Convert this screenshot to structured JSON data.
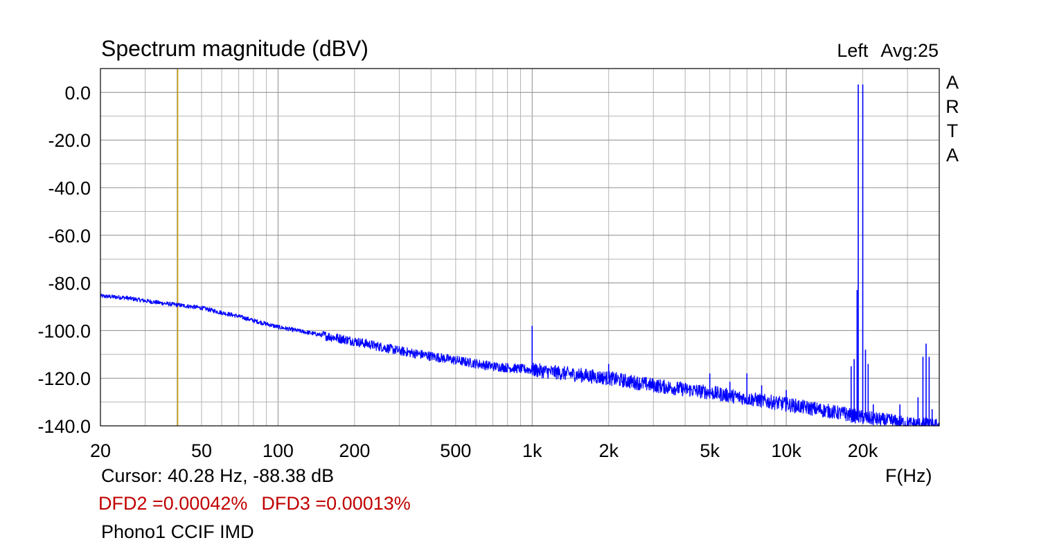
{
  "chart_data": {
    "type": "line",
    "title": "Spectrum magnitude (dBV)",
    "channel": "Left",
    "averaging": "Avg:25",
    "watermark": [
      "A",
      "R",
      "T",
      "A"
    ],
    "xlabel": "F(Hz)",
    "ylabel": "",
    "x_scale": "log",
    "xlim": [
      20,
      40000
    ],
    "ylim": [
      -140,
      10
    ],
    "x_ticks": [
      {
        "value": 20,
        "label": "20"
      },
      {
        "value": 50,
        "label": "50"
      },
      {
        "value": 100,
        "label": "100"
      },
      {
        "value": 200,
        "label": "200"
      },
      {
        "value": 500,
        "label": "500"
      },
      {
        "value": 1000,
        "label": "1k"
      },
      {
        "value": 2000,
        "label": "2k"
      },
      {
        "value": 5000,
        "label": "5k"
      },
      {
        "value": 10000,
        "label": "10k"
      },
      {
        "value": 20000,
        "label": "20k"
      }
    ],
    "y_ticks": [
      {
        "value": 0,
        "label": "0.0"
      },
      {
        "value": -20,
        "label": "-20.0"
      },
      {
        "value": -40,
        "label": "-40.0"
      },
      {
        "value": -60,
        "label": "-60.0"
      },
      {
        "value": -80,
        "label": "-80.0"
      },
      {
        "value": -100,
        "label": "-100.0"
      },
      {
        "value": -120,
        "label": "-120.0"
      },
      {
        "value": -140,
        "label": "-140.0"
      }
    ],
    "grid": true,
    "series": [
      {
        "color": "#0000ff",
        "noise_floor": [
          [
            20,
            -85.5
          ],
          [
            25,
            -86.2
          ],
          [
            30,
            -87.5
          ],
          [
            35,
            -88.5
          ],
          [
            40,
            -89.2
          ],
          [
            50,
            -90.5
          ],
          [
            60,
            -92.5
          ],
          [
            70,
            -94.0
          ],
          [
            80,
            -95.8
          ],
          [
            100,
            -98.5
          ],
          [
            150,
            -102.0
          ],
          [
            200,
            -104.5
          ],
          [
            300,
            -108.5
          ],
          [
            500,
            -112.5
          ],
          [
            700,
            -115.0
          ],
          [
            1000,
            -116.5
          ],
          [
            2000,
            -120.0
          ],
          [
            3000,
            -123.0
          ],
          [
            5000,
            -126.0
          ],
          [
            7000,
            -128.5
          ],
          [
            10000,
            -131.0
          ],
          [
            15000,
            -134.0
          ],
          [
            20000,
            -136.5
          ],
          [
            30000,
            -139.0
          ],
          [
            40000,
            -140.0
          ]
        ],
        "spikes": [
          [
            1000,
            -98.0
          ],
          [
            2000,
            -114.0
          ],
          [
            3000,
            -122.0
          ],
          [
            4000,
            -122.5
          ],
          [
            5000,
            -118.0
          ],
          [
            6000,
            -121.5
          ],
          [
            7000,
            -118.0
          ],
          [
            8000,
            -123.0
          ],
          [
            10000,
            -125.0
          ],
          [
            17000,
            -132.0
          ],
          [
            18000,
            -115.0
          ],
          [
            18500,
            -112.0
          ],
          [
            19000,
            -83.0
          ],
          [
            19200,
            3.3
          ],
          [
            20000,
            3.3
          ],
          [
            20500,
            -108.0
          ],
          [
            21000,
            -114.0
          ],
          [
            22000,
            -131.0
          ],
          [
            26000,
            -135.0
          ],
          [
            28000,
            -131.0
          ],
          [
            33000,
            -128.0
          ],
          [
            34500,
            -111.0
          ],
          [
            35500,
            -105.5
          ],
          [
            36500,
            -111.0
          ],
          [
            37500,
            -133.0
          ]
        ]
      }
    ],
    "cursor_line": {
      "x": 40.28,
      "color": "#c8a000"
    },
    "cursor_readout": "Cursor: 40.28 Hz, -88.38 dB",
    "annotations": [
      "DFD2 =0.00042%",
      "DFD3 =0.00013%"
    ],
    "annotation_color": "#c00000",
    "caption": "Phono1 CCIF IMD"
  }
}
